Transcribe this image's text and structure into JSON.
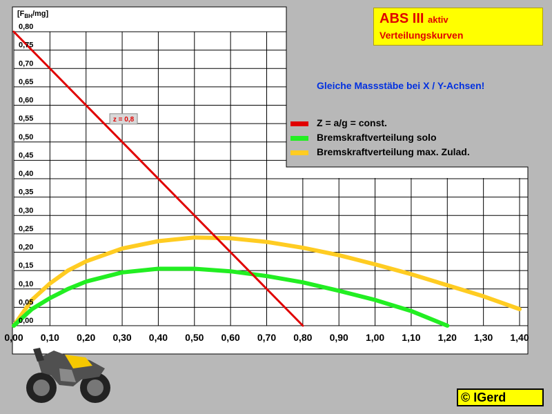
{
  "title": {
    "main": "ABS III",
    "main_suffix": "aktiv",
    "subtitle": "Verteilungskurven"
  },
  "note": "Gleiche Massstäbe bei X / Y-Achsen!",
  "copyright": "©",
  "copyright_name": "IGerd",
  "colors": {
    "background": "#b8b8b8",
    "plot_bg": "#ffffff",
    "grid": "#000000",
    "z_line": "#e00000",
    "solo": "#22ee22",
    "zulad": "#ffcc22",
    "title_box": "#ffff00"
  },
  "chart_data": {
    "type": "line",
    "ylabel": "[F",
    "ylabel_sub": "BH",
    "ylabel_tail": "/mg]",
    "xlim": [
      0,
      1.4
    ],
    "ylim": [
      0,
      0.8
    ],
    "grid": true,
    "x_ticks": [
      "0,00",
      "0,10",
      "0,20",
      "0,30",
      "0,40",
      "0,50",
      "0,60",
      "0,70",
      "0,80",
      "0,90",
      "1,00",
      "1,10",
      "1,20",
      "1,30",
      "1,40"
    ],
    "y_ticks": [
      "0,00",
      "0,05",
      "0,10",
      "0,15",
      "0,20",
      "0,25",
      "0,30",
      "0,35",
      "0,40",
      "0,45",
      "0,50",
      "0,55",
      "0,60",
      "0,65",
      "0,70",
      "0,75",
      "0,80"
    ],
    "annotation": {
      "text": "z = 0,8",
      "x": 0.3,
      "y": 0.56
    },
    "series": [
      {
        "name": "Z = a/g = const.",
        "color": "#e00000",
        "x": [
          0.0,
          0.8
        ],
        "y": [
          0.8,
          0.0
        ]
      },
      {
        "name": "Bremskraftverteilung solo",
        "color": "#22ee22",
        "x": [
          0.0,
          0.05,
          0.1,
          0.15,
          0.2,
          0.3,
          0.4,
          0.5,
          0.6,
          0.7,
          0.8,
          0.9,
          1.0,
          1.1,
          1.2
        ],
        "y": [
          0.0,
          0.045,
          0.075,
          0.1,
          0.12,
          0.145,
          0.155,
          0.155,
          0.148,
          0.135,
          0.118,
          0.095,
          0.07,
          0.04,
          0.0
        ]
      },
      {
        "name": "Bremskraftverteilung max. Zulad.",
        "color": "#ffcc22",
        "x": [
          0.0,
          0.05,
          0.1,
          0.15,
          0.2,
          0.3,
          0.4,
          0.5,
          0.6,
          0.7,
          0.8,
          0.9,
          1.0,
          1.1,
          1.2,
          1.3,
          1.4
        ],
        "y": [
          0.0,
          0.07,
          0.115,
          0.15,
          0.175,
          0.21,
          0.23,
          0.24,
          0.238,
          0.228,
          0.212,
          0.192,
          0.167,
          0.14,
          0.11,
          0.08,
          0.045
        ]
      }
    ]
  }
}
